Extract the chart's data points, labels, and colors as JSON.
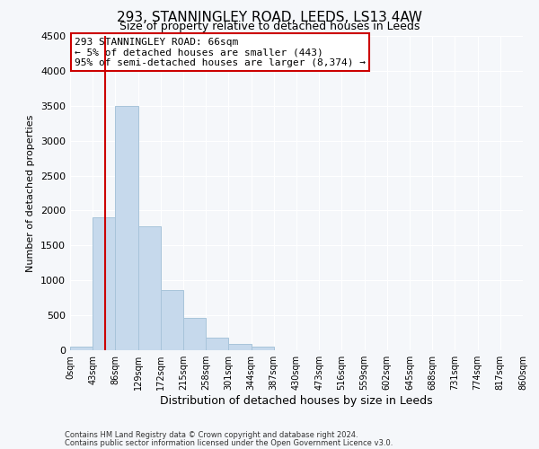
{
  "title": "293, STANNINGLEY ROAD, LEEDS, LS13 4AW",
  "subtitle": "Size of property relative to detached houses in Leeds",
  "xlabel": "Distribution of detached houses by size in Leeds",
  "ylabel": "Number of detached properties",
  "bar_color": "#c6d9ec",
  "bar_edge_color": "#a8c4da",
  "bin_edges": [
    0,
    43,
    86,
    129,
    172,
    215,
    258,
    301,
    344,
    387,
    430,
    473,
    516,
    559,
    602,
    645,
    688,
    731,
    774,
    817,
    860
  ],
  "bar_heights": [
    50,
    1900,
    3500,
    1780,
    860,
    460,
    185,
    90,
    50,
    5,
    0,
    0,
    0,
    0,
    0,
    0,
    0,
    0,
    0,
    0
  ],
  "tick_labels": [
    "0sqm",
    "43sqm",
    "86sqm",
    "129sqm",
    "172sqm",
    "215sqm",
    "258sqm",
    "301sqm",
    "344sqm",
    "387sqm",
    "430sqm",
    "473sqm",
    "516sqm",
    "559sqm",
    "602sqm",
    "645sqm",
    "688sqm",
    "731sqm",
    "774sqm",
    "817sqm",
    "860sqm"
  ],
  "vline_x": 66,
  "vline_color": "#cc0000",
  "ylim": [
    0,
    4500
  ],
  "yticks": [
    0,
    500,
    1000,
    1500,
    2000,
    2500,
    3000,
    3500,
    4000,
    4500
  ],
  "annotation_line1": "293 STANNINGLEY ROAD: 66sqm",
  "annotation_line2": "← 5% of detached houses are smaller (443)",
  "annotation_line3": "95% of semi-detached houses are larger (8,374) →",
  "annotation_box_color": "#ffffff",
  "annotation_box_edge": "#cc0000",
  "footer_line1": "Contains HM Land Registry data © Crown copyright and database right 2024.",
  "footer_line2": "Contains public sector information licensed under the Open Government Licence v3.0.",
  "background_color": "#f5f7fa",
  "grid_color": "#ffffff",
  "title_fontsize": 11,
  "subtitle_fontsize": 9,
  "xlabel_fontsize": 9,
  "ylabel_fontsize": 8,
  "tick_fontsize": 7,
  "annotation_fontsize": 8,
  "footer_fontsize": 6
}
